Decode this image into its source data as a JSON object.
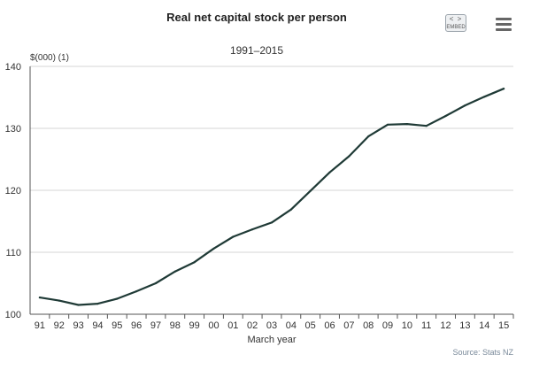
{
  "header": {
    "embed_arrows": "< >",
    "embed_label": "EMBED",
    "menu_icon": "hamburger-menu-icon"
  },
  "footer": {
    "source": "Source: Stats NZ"
  },
  "chart_data": {
    "type": "line",
    "title": "Real net capital stock per person",
    "subtitle": "1991–2015",
    "ylabel": "$(000) (1)",
    "xlabel": "March year",
    "ylim": [
      100,
      140
    ],
    "yticks": [
      100,
      110,
      120,
      130,
      140
    ],
    "grid": true,
    "legend": "none",
    "line_color": "#1f3a36",
    "categories": [
      "91",
      "92",
      "93",
      "94",
      "95",
      "96",
      "97",
      "98",
      "99",
      "00",
      "01",
      "02",
      "03",
      "04",
      "05",
      "06",
      "07",
      "08",
      "09",
      "10",
      "11",
      "12",
      "13",
      "14",
      "15"
    ],
    "series": [
      {
        "values": [
          102.7,
          102.2,
          101.5,
          101.7,
          102.5,
          103.7,
          105.0,
          106.9,
          108.4,
          110.6,
          112.5,
          113.7,
          114.8,
          116.9,
          119.9,
          122.9,
          125.5,
          128.7,
          130.6,
          130.7,
          130.4,
          132.0,
          133.7,
          135.1,
          136.4
        ]
      }
    ]
  }
}
